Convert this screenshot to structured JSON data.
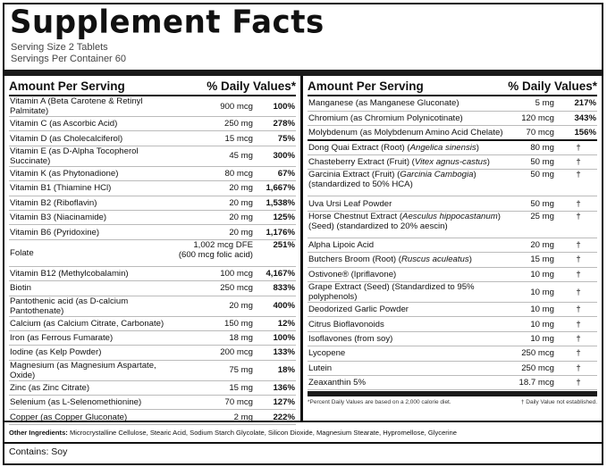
{
  "title": "Supplement Facts",
  "serving_size": "Serving Size 2 Tablets",
  "servings_per_container": "Servings Per Container 60",
  "header": {
    "amount": "Amount Per Serving",
    "dv": "% Daily Values*"
  },
  "left_rows": [
    {
      "name": "Vitamin A (Beta Carotene & Retinyl Palmitate)",
      "amount": "900 mcg",
      "dv": "100%"
    },
    {
      "name": "Vitamin C (as Ascorbic Acid)",
      "amount": "250 mg",
      "dv": "278%"
    },
    {
      "name": "Vitamin D (as Cholecalciferol)",
      "amount": "15 mcg",
      "dv": "75%"
    },
    {
      "name": "Vitamin E (as D-Alpha Tocopherol Succinate)",
      "amount": "45 mg",
      "dv": "300%"
    },
    {
      "name": "Vitamin K (as Phytonadione)",
      "amount": "80 mcg",
      "dv": "67%"
    },
    {
      "name": "Vitamin B1 (Thiamine HCl)",
      "amount": "20 mg",
      "dv": "1,667%"
    },
    {
      "name": "Vitamin B2 (Riboflavin)",
      "amount": "20 mg",
      "dv": "1,538%"
    },
    {
      "name": "Vitamin B3 (Niacinamide)",
      "amount": "20 mg",
      "dv": "125%"
    },
    {
      "name": "Vitamin B6 (Pyridoxine)",
      "amount": "20 mg",
      "dv": "1,176%"
    },
    {
      "name": "Folate",
      "amount": "1,002 mcg DFE",
      "amount2": "(600 mcg folic acid)",
      "dv": "251%"
    },
    {
      "name": "Vitamin B12 (Methylcobalamin)",
      "amount": "100 mcg",
      "dv": "4,167%"
    },
    {
      "name": "Biotin",
      "amount": "250 mcg",
      "dv": "833%"
    },
    {
      "name": "Pantothenic acid (as D-calcium Pantothenate)",
      "amount": "20 mg",
      "dv": "400%"
    },
    {
      "name": "Calcium (as Calcium Citrate, Carbonate)",
      "amount": "150 mg",
      "dv": "12%"
    },
    {
      "name": "Iron (as Ferrous Fumarate)",
      "amount": "18 mg",
      "dv": "100%"
    },
    {
      "name": "Iodine (as Kelp Powder)",
      "amount": "200 mcg",
      "dv": "133%"
    },
    {
      "name": "Magnesium (as Magnesium Aspartate, Oxide)",
      "amount": "75 mg",
      "dv": "18%"
    },
    {
      "name": "Zinc (as Zinc Citrate)",
      "amount": "15 mg",
      "dv": "136%"
    },
    {
      "name": "Selenium (as L-Selenomethionine)",
      "amount": "70 mcg",
      "dv": "127%"
    },
    {
      "name": "Copper (as Copper Gluconate)",
      "amount": "2 mg",
      "dv": "222%"
    }
  ],
  "right_minerals": [
    {
      "name": "Manganese (as Manganese Gluconate)",
      "amount": "5 mg",
      "dv": "217%"
    },
    {
      "name": "Chromium (as Chromium Polynicotinate)",
      "amount": "120 mcg",
      "dv": "343%"
    },
    {
      "name": "Molybdenum (as Molybdenum Amino Acid Chelate)",
      "amount": "70 mcg",
      "dv": "156%"
    }
  ],
  "right_other": [
    {
      "name": "Dong Quai Extract (Root) (",
      "italic": "Angelica sinensis",
      "post": ")",
      "amount": "80 mg",
      "dv": "†"
    },
    {
      "name": "Chasteberry Extract (Fruit) (",
      "italic": "Vitex agnus-castus",
      "post": ")",
      "amount": "50 mg",
      "dv": "†"
    },
    {
      "name": "Garcinia Extract (Fruit) (",
      "italic": "Garcinia Cambogia",
      "post": ")",
      "line2": "(standardized to 50% HCA)",
      "amount": "50 mg",
      "dv": "†"
    },
    {
      "name": "Uva Ursi Leaf Powder",
      "amount": "50 mg",
      "dv": "†"
    },
    {
      "name": "Horse Chestnut Extract (",
      "italic": "Aesculus hippocastanum",
      "post": ")",
      "line2": "(Seed) (standardized to 20% aescin)",
      "amount": "25 mg",
      "dv": "†"
    },
    {
      "name": "Alpha Lipoic Acid",
      "amount": "20 mg",
      "dv": "†"
    },
    {
      "name": "Butchers Broom (Root) (",
      "italic": "Ruscus aculeatus",
      "post": ")",
      "amount": "15 mg",
      "dv": "†"
    },
    {
      "name": "Ostivone® (Ipriflavone)",
      "amount": "10 mg",
      "dv": "†"
    },
    {
      "name": "Grape Extract (Seed) (Standardized to 95% polyphenols)",
      "amount": "10 mg",
      "dv": "†"
    },
    {
      "name": "Deodorized Garlic Powder",
      "amount": "10 mg",
      "dv": "†"
    },
    {
      "name": "Citrus Bioflavonoids",
      "amount": "10 mg",
      "dv": "†"
    },
    {
      "name": "Isoflavones (from soy)",
      "amount": "10 mg",
      "dv": "†"
    },
    {
      "name": "Lycopene",
      "amount": "250 mcg",
      "dv": "†"
    },
    {
      "name": "Lutein",
      "amount": "250 mcg",
      "dv": "†"
    },
    {
      "name": "Zeaxanthin 5%",
      "amount": "18.7 mcg",
      "dv": "†"
    }
  ],
  "footnote_left": "*Percent Daily Values are based on a 2,000 calorie diet.",
  "footnote_right": "† Daily Value not established.",
  "other_label": "Other Ingredients:",
  "other_text": " Microcrystalline Cellulose, Stearic Acid, Sodium Starch Glycolate, Silicon Dioxide, Magnesium Stearate, Hypromellose, Glycerine",
  "contains": "Contains: Soy"
}
